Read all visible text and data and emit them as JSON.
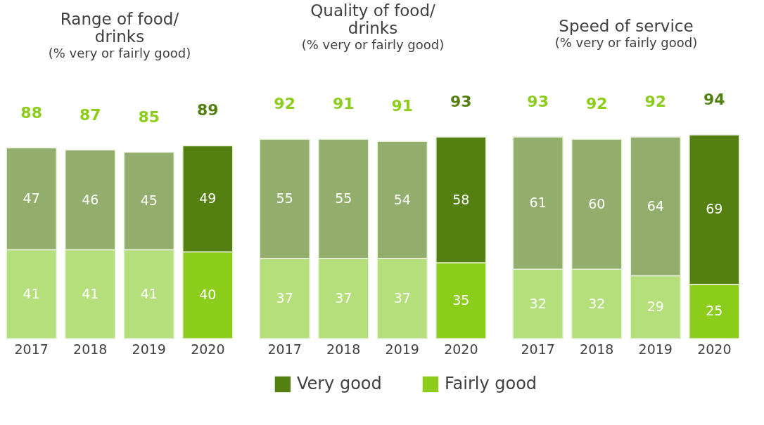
{
  "chart_data": [
    {
      "type": "bar",
      "stacked": true,
      "title": "Range of food/\ndrinks",
      "subtitle": "(% very or fairly good)",
      "categories": [
        "2017",
        "2018",
        "2019",
        "2020"
      ],
      "data_labels": true,
      "totals": [
        "88",
        "87",
        "85",
        "89"
      ],
      "legend": "bottom",
      "series": [
        {
          "name": "Fairly good",
          "color": "#8ccd1c",
          "colors": [
            "#b5df7a",
            "#b5df7a",
            "#b5df7a",
            "#8ccd1c"
          ],
          "values": [
            41,
            41,
            41,
            40
          ]
        },
        {
          "name": "Very good",
          "color": "#548011",
          "colors": [
            "#93ae6c",
            "#93ae6c",
            "#93ae6c",
            "#548011"
          ],
          "values": [
            47,
            46,
            45,
            49
          ]
        }
      ]
    },
    {
      "type": "bar",
      "stacked": true,
      "title": "Quality of food/\ndrinks",
      "subtitle": "(% very or fairly good)",
      "categories": [
        "2017",
        "2018",
        "2019",
        "2020"
      ],
      "data_labels": true,
      "totals": [
        "92",
        "91",
        "91",
        "93"
      ],
      "series": [
        {
          "color": "#8ccd1c",
          "colors": [
            "#b5df7a",
            "#b5df7a",
            "#b5df7a",
            "#8ccd1c"
          ],
          "values": [
            37,
            37,
            37,
            35
          ]
        },
        {
          "color": "#548011",
          "colors": [
            "#93ae6c",
            "#93ae6c",
            "#93ae6c",
            "#548011"
          ],
          "values": [
            55,
            55,
            54,
            58
          ]
        }
      ]
    },
    {
      "type": "bar",
      "stacked": true,
      "title": "Speed of service",
      "subtitle": "(% very or fairly good)",
      "categories": [
        "2017",
        "2018",
        "2019",
        "2020"
      ],
      "data_labels": true,
      "totals": [
        "93",
        "92",
        "92",
        "94"
      ],
      "series": [
        {
          "color": "#8ccd1c",
          "colors": [
            "#b5df7a",
            "#b5df7a",
            "#b5df7a",
            "#8ccd1c"
          ],
          "values": [
            32,
            32,
            29,
            25
          ]
        },
        {
          "color": "#548011",
          "colors": [
            "#93ae6c",
            "#93ae6c",
            "#93ae6c",
            "#548011"
          ],
          "values": [
            61,
            60,
            64,
            69
          ]
        }
      ]
    }
  ]
}
